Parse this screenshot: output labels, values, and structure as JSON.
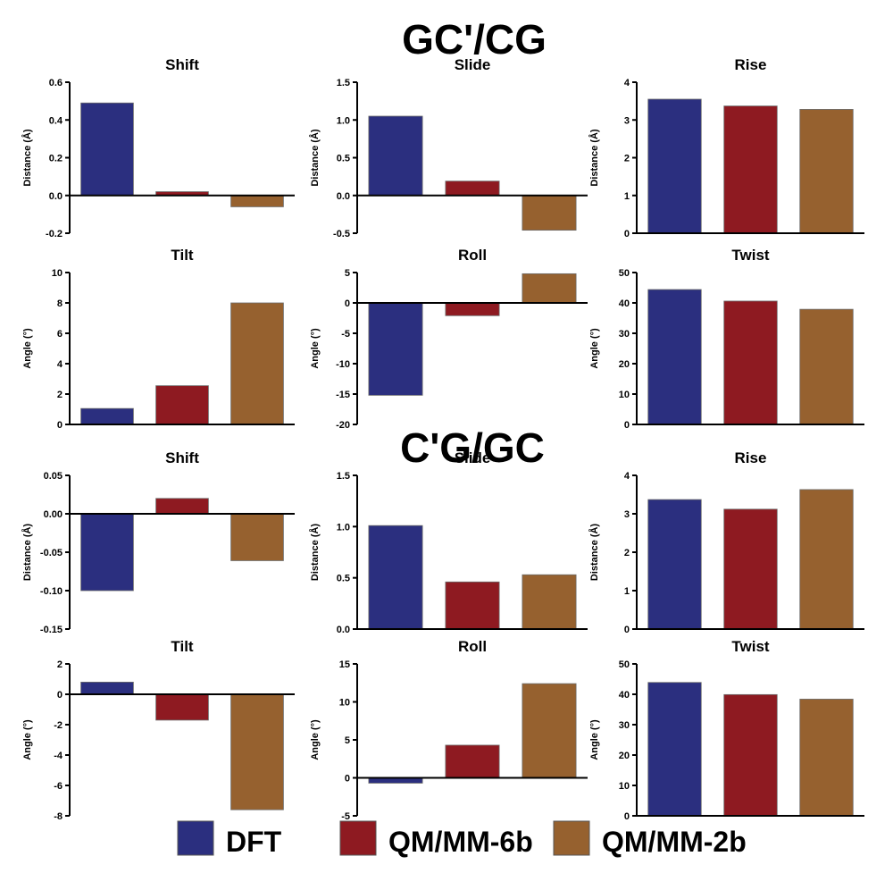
{
  "section_titles": [
    "GC'/CG",
    "C'G/GC"
  ],
  "legend": [
    {
      "label": "DFT",
      "color": "#2b2f7f"
    },
    {
      "label": "QM/MM-6b",
      "color": "#8e1a21"
    },
    {
      "label": "QM/MM-2b",
      "color": "#96612f"
    }
  ],
  "bar_colors": [
    "#2b2f7f",
    "#8e1a21",
    "#96612f"
  ],
  "chart_data": [
    {
      "type": "bar",
      "section": "GC'/CG",
      "title": "Shift",
      "ylabel": "Distance (Å)",
      "ylim": [
        -0.2,
        0.6
      ],
      "ticks": [
        "-0.2",
        "0.0",
        "0.2",
        "0.4",
        "0.6"
      ],
      "series": [
        {
          "name": "DFT",
          "values": [
            0.49
          ]
        },
        {
          "name": "QM/MM-6b",
          "values": [
            0.02
          ]
        },
        {
          "name": "QM/MM-2b",
          "values": [
            -0.06
          ]
        }
      ]
    },
    {
      "type": "bar",
      "section": "GC'/CG",
      "title": "Slide",
      "ylabel": "Distance (Å)",
      "ylim": [
        -0.5,
        1.5
      ],
      "ticks": [
        "-0.5",
        "0.0",
        "0.5",
        "1.0",
        "1.5"
      ],
      "series": [
        {
          "name": "DFT",
          "values": [
            1.05
          ]
        },
        {
          "name": "QM/MM-6b",
          "values": [
            0.19
          ]
        },
        {
          "name": "QM/MM-2b",
          "values": [
            -0.46
          ]
        }
      ]
    },
    {
      "type": "bar",
      "section": "GC'/CG",
      "title": "Rise",
      "ylabel": "Distance (Å)",
      "ylim": [
        0,
        4
      ],
      "ticks": [
        "0",
        "1",
        "2",
        "3",
        "4"
      ],
      "series": [
        {
          "name": "DFT",
          "values": [
            3.55
          ]
        },
        {
          "name": "QM/MM-6b",
          "values": [
            3.37
          ]
        },
        {
          "name": "QM/MM-2b",
          "values": [
            3.28
          ]
        }
      ]
    },
    {
      "type": "bar",
      "section": "GC'/CG",
      "title": "Tilt",
      "ylabel": "Angle (°)",
      "ylim": [
        0,
        10
      ],
      "ticks": [
        "0",
        "2",
        "4",
        "6",
        "8",
        "10"
      ],
      "series": [
        {
          "name": "DFT",
          "values": [
            1.05
          ]
        },
        {
          "name": "QM/MM-6b",
          "values": [
            2.55
          ]
        },
        {
          "name": "QM/MM-2b",
          "values": [
            8.0
          ]
        }
      ]
    },
    {
      "type": "bar",
      "section": "GC'/CG",
      "title": "Roll",
      "ylabel": "Angle (°)",
      "ylim": [
        -20,
        5
      ],
      "ticks": [
        "-20",
        "-15",
        "-10",
        "-5",
        "0",
        "5"
      ],
      "series": [
        {
          "name": "DFT",
          "values": [
            -15.2
          ]
        },
        {
          "name": "QM/MM-6b",
          "values": [
            -2.1
          ]
        },
        {
          "name": "QM/MM-2b",
          "values": [
            4.8
          ]
        }
      ]
    },
    {
      "type": "bar",
      "section": "GC'/CG",
      "title": "Twist",
      "ylabel": "Angle (°)",
      "ylim": [
        0,
        50
      ],
      "ticks": [
        "0",
        "10",
        "20",
        "30",
        "40",
        "50"
      ],
      "series": [
        {
          "name": "DFT",
          "values": [
            44.4
          ]
        },
        {
          "name": "QM/MM-6b",
          "values": [
            40.6
          ]
        },
        {
          "name": "QM/MM-2b",
          "values": [
            37.9
          ]
        }
      ]
    },
    {
      "type": "bar",
      "section": "C'G/GC",
      "title": "Shift",
      "ylabel": "Distance (Å)",
      "ylim": [
        -0.15,
        0.05
      ],
      "ticks": [
        "-0.15",
        "-0.10",
        "-0.05",
        "0.00",
        "0.05"
      ],
      "series": [
        {
          "name": "DFT",
          "values": [
            -0.1
          ]
        },
        {
          "name": "QM/MM-6b",
          "values": [
            0.02
          ]
        },
        {
          "name": "QM/MM-2b",
          "values": [
            -0.061
          ]
        }
      ]
    },
    {
      "type": "bar",
      "section": "C'G/GC",
      "title": "Slide",
      "ylabel": "Distance (Å)",
      "ylim": [
        0,
        1.5
      ],
      "ticks": [
        "0.0",
        "0.5",
        "1.0",
        "1.5"
      ],
      "series": [
        {
          "name": "DFT",
          "values": [
            1.01
          ]
        },
        {
          "name": "QM/MM-6b",
          "values": [
            0.46
          ]
        },
        {
          "name": "QM/MM-2b",
          "values": [
            0.53
          ]
        }
      ]
    },
    {
      "type": "bar",
      "section": "C'G/GC",
      "title": "Rise",
      "ylabel": "Distance (Å)",
      "ylim": [
        0,
        4
      ],
      "ticks": [
        "0",
        "1",
        "2",
        "3",
        "4"
      ],
      "series": [
        {
          "name": "DFT",
          "values": [
            3.37
          ]
        },
        {
          "name": "QM/MM-6b",
          "values": [
            3.12
          ]
        },
        {
          "name": "QM/MM-2b",
          "values": [
            3.63
          ]
        }
      ]
    },
    {
      "type": "bar",
      "section": "C'G/GC",
      "title": "Tilt",
      "ylabel": "Angle (°)",
      "ylim": [
        -8,
        2
      ],
      "ticks": [
        "-8",
        "-6",
        "-4",
        "-2",
        "0",
        "2"
      ],
      "series": [
        {
          "name": "DFT",
          "values": [
            0.8
          ]
        },
        {
          "name": "QM/MM-6b",
          "values": [
            -1.7
          ]
        },
        {
          "name": "QM/MM-2b",
          "values": [
            -7.6
          ]
        }
      ]
    },
    {
      "type": "bar",
      "section": "C'G/GC",
      "title": "Roll",
      "ylabel": "Angle (°)",
      "ylim": [
        -5,
        15
      ],
      "ticks": [
        "-5",
        "0",
        "5",
        "10",
        "15"
      ],
      "series": [
        {
          "name": "DFT",
          "values": [
            -0.7
          ]
        },
        {
          "name": "QM/MM-6b",
          "values": [
            4.3
          ]
        },
        {
          "name": "QM/MM-2b",
          "values": [
            12.4
          ]
        }
      ]
    },
    {
      "type": "bar",
      "section": "C'G/GC",
      "title": "Twist",
      "ylabel": "Angle (°)",
      "ylim": [
        0,
        50
      ],
      "ticks": [
        "0",
        "10",
        "20",
        "30",
        "40",
        "50"
      ],
      "series": [
        {
          "name": "DFT",
          "values": [
            43.9
          ]
        },
        {
          "name": "QM/MM-6b",
          "values": [
            39.9
          ]
        },
        {
          "name": "QM/MM-2b",
          "values": [
            38.4
          ]
        }
      ]
    }
  ]
}
